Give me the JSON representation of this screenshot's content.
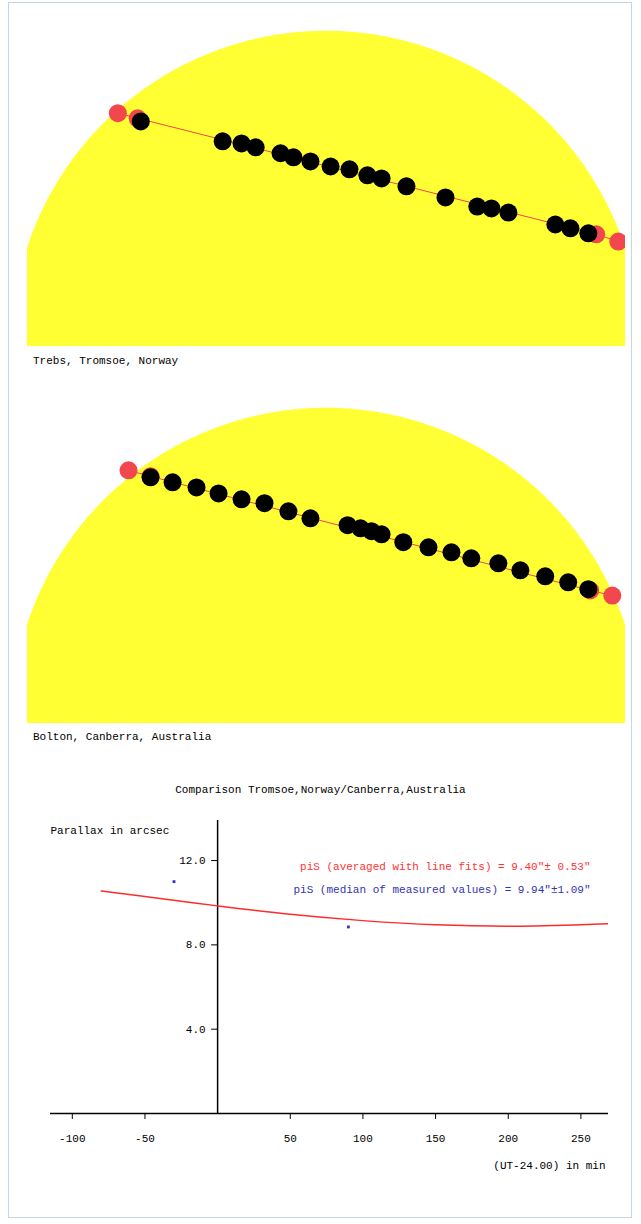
{
  "chart_data": [
    {
      "type": "scatter",
      "caption": "Trebs, Tromsoe, Norway",
      "xlim": [
        -0.95,
        0.95
      ],
      "ylim": [
        0,
        1.05
      ],
      "tick_labels": false,
      "disk_radius": 1,
      "disk_color": "#ffff33",
      "series": [
        {
          "color": "#f2474c",
          "marker": "circle",
          "line_style": "solid",
          "x": [
            -0.663,
            -0.6,
            0.857,
            0.927
          ],
          "values": [
            0.74,
            0.724,
            0.356,
            0.333
          ]
        },
        {
          "color": "#000000",
          "marker": "circle",
          "x": [
            -0.59,
            -0.33,
            -0.27,
            -0.225,
            -0.146,
            -0.105,
            -0.051,
            0.013,
            0.073,
            0.13,
            0.175,
            0.254,
            0.378,
            0.479,
            0.524,
            0.578,
            0.727,
            0.775,
            0.832
          ],
          "values": [
            0.714,
            0.651,
            0.644,
            0.632,
            0.613,
            0.6,
            0.587,
            0.571,
            0.562,
            0.543,
            0.533,
            0.508,
            0.473,
            0.444,
            0.438,
            0.425,
            0.387,
            0.375,
            0.359
          ]
        }
      ]
    },
    {
      "type": "scatter",
      "caption": "Bolton, Canberra, Australia",
      "xlim": [
        -0.95,
        0.95
      ],
      "ylim": [
        0,
        1.05
      ],
      "tick_labels": false,
      "disk_radius": 1,
      "disk_color": "#ffff33",
      "series": [
        {
          "color": "#f2474c",
          "marker": "circle",
          "line_style": "solid",
          "x": [
            -0.629,
            -0.559,
            0.838,
            0.908
          ],
          "values": [
            0.803,
            0.784,
            0.422,
            0.406
          ]
        },
        {
          "color": "#000000",
          "marker": "circle",
          "x": [
            -0.559,
            -0.489,
            -0.413,
            -0.343,
            -0.27,
            -0.197,
            -0.121,
            -0.051,
            0.067,
            0.108,
            0.143,
            0.175,
            0.244,
            0.324,
            0.397,
            0.46,
            0.546,
            0.616,
            0.695,
            0.768,
            0.832
          ],
          "values": [
            0.781,
            0.765,
            0.749,
            0.73,
            0.711,
            0.699,
            0.673,
            0.651,
            0.629,
            0.619,
            0.61,
            0.6,
            0.575,
            0.559,
            0.543,
            0.524,
            0.508,
            0.486,
            0.467,
            0.448,
            0.426
          ]
        }
      ]
    },
    {
      "type": "line",
      "title": "Comparison Tromsoe,Norway/Canberra,Australia",
      "ylabel": "Parallax in arcsec",
      "xlabel": "(UT-24.00) in min",
      "xlim": [
        -115,
        269
      ],
      "ylim": [
        0,
        13.9
      ],
      "xticks": [
        -100,
        -50,
        50,
        100,
        150,
        200,
        250
      ],
      "yticks": [
        {
          "value": 4,
          "label": "4.0"
        },
        {
          "value": 8,
          "label": "8.0"
        },
        {
          "value": 12,
          "label": "12.0"
        }
      ],
      "series": [
        {
          "type": "line",
          "color": "#ff2a2a",
          "x": [
            -80,
            -50,
            0,
            50,
            100,
            150,
            200,
            250,
            270
          ],
          "values": [
            10.55,
            10.3,
            9.85,
            9.45,
            9.15,
            8.95,
            8.88,
            8.95,
            9.0
          ]
        },
        {
          "type": "scatter",
          "color": "#3333cc",
          "marker": "square",
          "x": [
            -30,
            90
          ],
          "values": [
            11.0,
            8.85
          ]
        }
      ],
      "annotations": [
        {
          "text": "piS (averaged with line fits) = 9.40\"± 0.53\"",
          "color": "#ff3333"
        },
        {
          "text": "piS (median of measured values) = 9.94\"±1.09\"",
          "color": "#3333aa"
        }
      ]
    }
  ]
}
